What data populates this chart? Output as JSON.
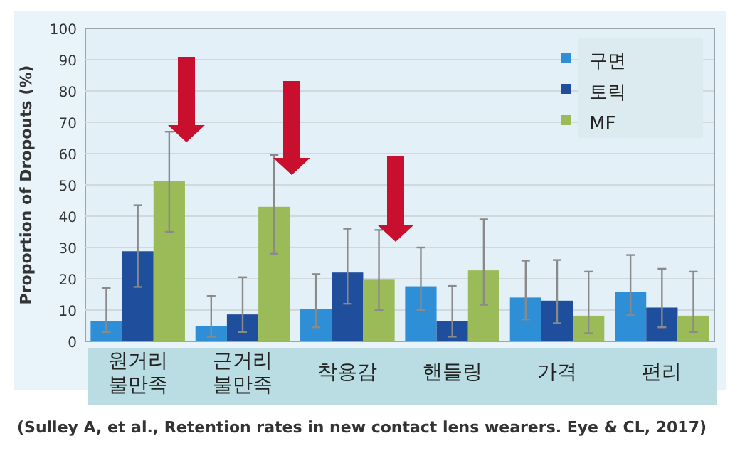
{
  "chart_data": {
    "type": "bar",
    "ylabel": "Proportion of Dropouts (%)",
    "categories": [
      "원거리\n불만족",
      "근거리\n불만족",
      "착용감",
      "핸들링",
      "가격",
      "편리"
    ],
    "series": [
      {
        "name": "구면",
        "color": "#2e8fd6",
        "values": [
          6.5,
          5,
          10.3,
          17.6,
          14,
          15.8
        ],
        "errors": [
          [
            3,
            17
          ],
          [
            1.5,
            14.5
          ],
          [
            4.5,
            21.5
          ],
          [
            10,
            30
          ],
          [
            7,
            25.8
          ],
          [
            8.3,
            27.6
          ]
        ]
      },
      {
        "name": "토릭",
        "color": "#1f4e9c",
        "values": [
          28.8,
          8.6,
          22,
          6.4,
          13,
          10.8
        ],
        "errors": [
          [
            17.4,
            43.5
          ],
          [
            3,
            20.5
          ],
          [
            12,
            36
          ],
          [
            1.5,
            17.7
          ],
          [
            5.8,
            26
          ],
          [
            4.5,
            23.2
          ]
        ]
      },
      {
        "name": "MF",
        "color": "#9bbb59",
        "values": [
          51.2,
          43,
          19.7,
          22.7,
          8.2,
          8.2
        ],
        "errors": [
          [
            35,
            67
          ],
          [
            28,
            59.5
          ],
          [
            10,
            35.6
          ],
          [
            11.7,
            39
          ],
          [
            2.6,
            22.3
          ],
          [
            3,
            22.3
          ]
        ]
      }
    ],
    "ylim": [
      0,
      100
    ],
    "yticks": [
      0,
      10,
      20,
      30,
      40,
      50,
      60,
      70,
      80,
      90,
      100
    ],
    "grid": "y",
    "legend": "top right",
    "annotations": [
      "(Sulley A, et al., Retention rates in new contact lens wearers. Eye & CL, 2017)"
    ]
  }
}
